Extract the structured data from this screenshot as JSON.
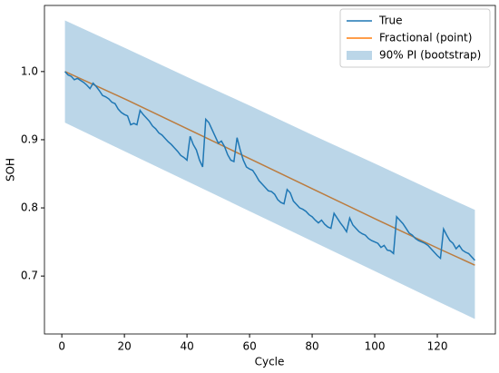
{
  "chart_data": {
    "type": "line",
    "xlabel": "Cycle",
    "ylabel": "SOH",
    "xlim": [
      -5.55,
      138.55
    ],
    "ylim": [
      0.615,
      1.097
    ],
    "xticks": [
      0,
      20,
      40,
      60,
      80,
      100,
      120
    ],
    "yticks": [
      0.7,
      0.8,
      0.9,
      {
        "value": 1,
        "label": "1.0"
      }
    ],
    "legend": "upper right",
    "band": {
      "name": "90% PI (bootstrap)",
      "color": "#1f77b4",
      "opacity": 0.3,
      "x": [
        1,
        21,
        41,
        61,
        81,
        101,
        121,
        132
      ],
      "lower": [
        0.925,
        0.881,
        0.837,
        0.793,
        0.749,
        0.705,
        0.661,
        0.637
      ],
      "upper": [
        1.075,
        1.033,
        0.99,
        0.948,
        0.905,
        0.863,
        0.82,
        0.797
      ]
    },
    "series": [
      {
        "name": "True",
        "color": "#1f77b4",
        "x": [
          1,
          2,
          3,
          4,
          5,
          6,
          7,
          8,
          9,
          10,
          11,
          12,
          13,
          14,
          15,
          16,
          17,
          18,
          19,
          20,
          21,
          22,
          23,
          24,
          25,
          26,
          27,
          28,
          29,
          30,
          31,
          32,
          33,
          34,
          35,
          36,
          37,
          38,
          39,
          40,
          41,
          42,
          43,
          44,
          45,
          46,
          47,
          48,
          49,
          50,
          51,
          52,
          53,
          54,
          55,
          56,
          57,
          58,
          59,
          60,
          61,
          62,
          63,
          64,
          65,
          66,
          67,
          68,
          69,
          70,
          71,
          72,
          73,
          74,
          75,
          76,
          77,
          78,
          79,
          80,
          81,
          82,
          83,
          84,
          85,
          86,
          87,
          88,
          89,
          90,
          91,
          92,
          93,
          94,
          95,
          96,
          97,
          98,
          99,
          100,
          101,
          102,
          103,
          104,
          105,
          106,
          107,
          108,
          109,
          110,
          111,
          112,
          113,
          114,
          115,
          116,
          117,
          118,
          119,
          120,
          121,
          122,
          123,
          124,
          125,
          126,
          127,
          128,
          129,
          130,
          131,
          132
        ],
        "values": [
          1.0,
          0.995,
          0.993,
          0.988,
          0.99,
          0.987,
          0.984,
          0.98,
          0.975,
          0.983,
          0.978,
          0.972,
          0.965,
          0.963,
          0.96,
          0.955,
          0.953,
          0.945,
          0.94,
          0.937,
          0.935,
          0.922,
          0.924,
          0.922,
          0.943,
          0.937,
          0.932,
          0.927,
          0.92,
          0.916,
          0.91,
          0.907,
          0.902,
          0.897,
          0.893,
          0.888,
          0.883,
          0.877,
          0.874,
          0.87,
          0.905,
          0.893,
          0.885,
          0.87,
          0.86,
          0.93,
          0.925,
          0.915,
          0.905,
          0.895,
          0.898,
          0.89,
          0.878,
          0.87,
          0.868,
          0.903,
          0.885,
          0.87,
          0.86,
          0.857,
          0.855,
          0.848,
          0.84,
          0.835,
          0.83,
          0.825,
          0.824,
          0.82,
          0.812,
          0.808,
          0.806,
          0.827,
          0.822,
          0.81,
          0.805,
          0.8,
          0.798,
          0.795,
          0.79,
          0.787,
          0.782,
          0.778,
          0.782,
          0.776,
          0.772,
          0.77,
          0.792,
          0.785,
          0.778,
          0.772,
          0.765,
          0.785,
          0.775,
          0.77,
          0.765,
          0.762,
          0.76,
          0.755,
          0.752,
          0.75,
          0.748,
          0.742,
          0.745,
          0.738,
          0.737,
          0.733,
          0.787,
          0.782,
          0.777,
          0.77,
          0.763,
          0.76,
          0.755,
          0.752,
          0.75,
          0.748,
          0.745,
          0.74,
          0.735,
          0.73,
          0.726,
          0.769,
          0.76,
          0.752,
          0.748,
          0.74,
          0.745,
          0.738,
          0.735,
          0.733,
          0.728,
          0.723
        ]
      },
      {
        "name": "Fractional (point)",
        "color": "#ff7f0e",
        "x": [
          1,
          21,
          41,
          61,
          81,
          101,
          121,
          132
        ],
        "values": [
          1.0,
          0.958,
          0.914,
          0.87,
          0.826,
          0.782,
          0.739,
          0.716
        ]
      }
    ]
  }
}
